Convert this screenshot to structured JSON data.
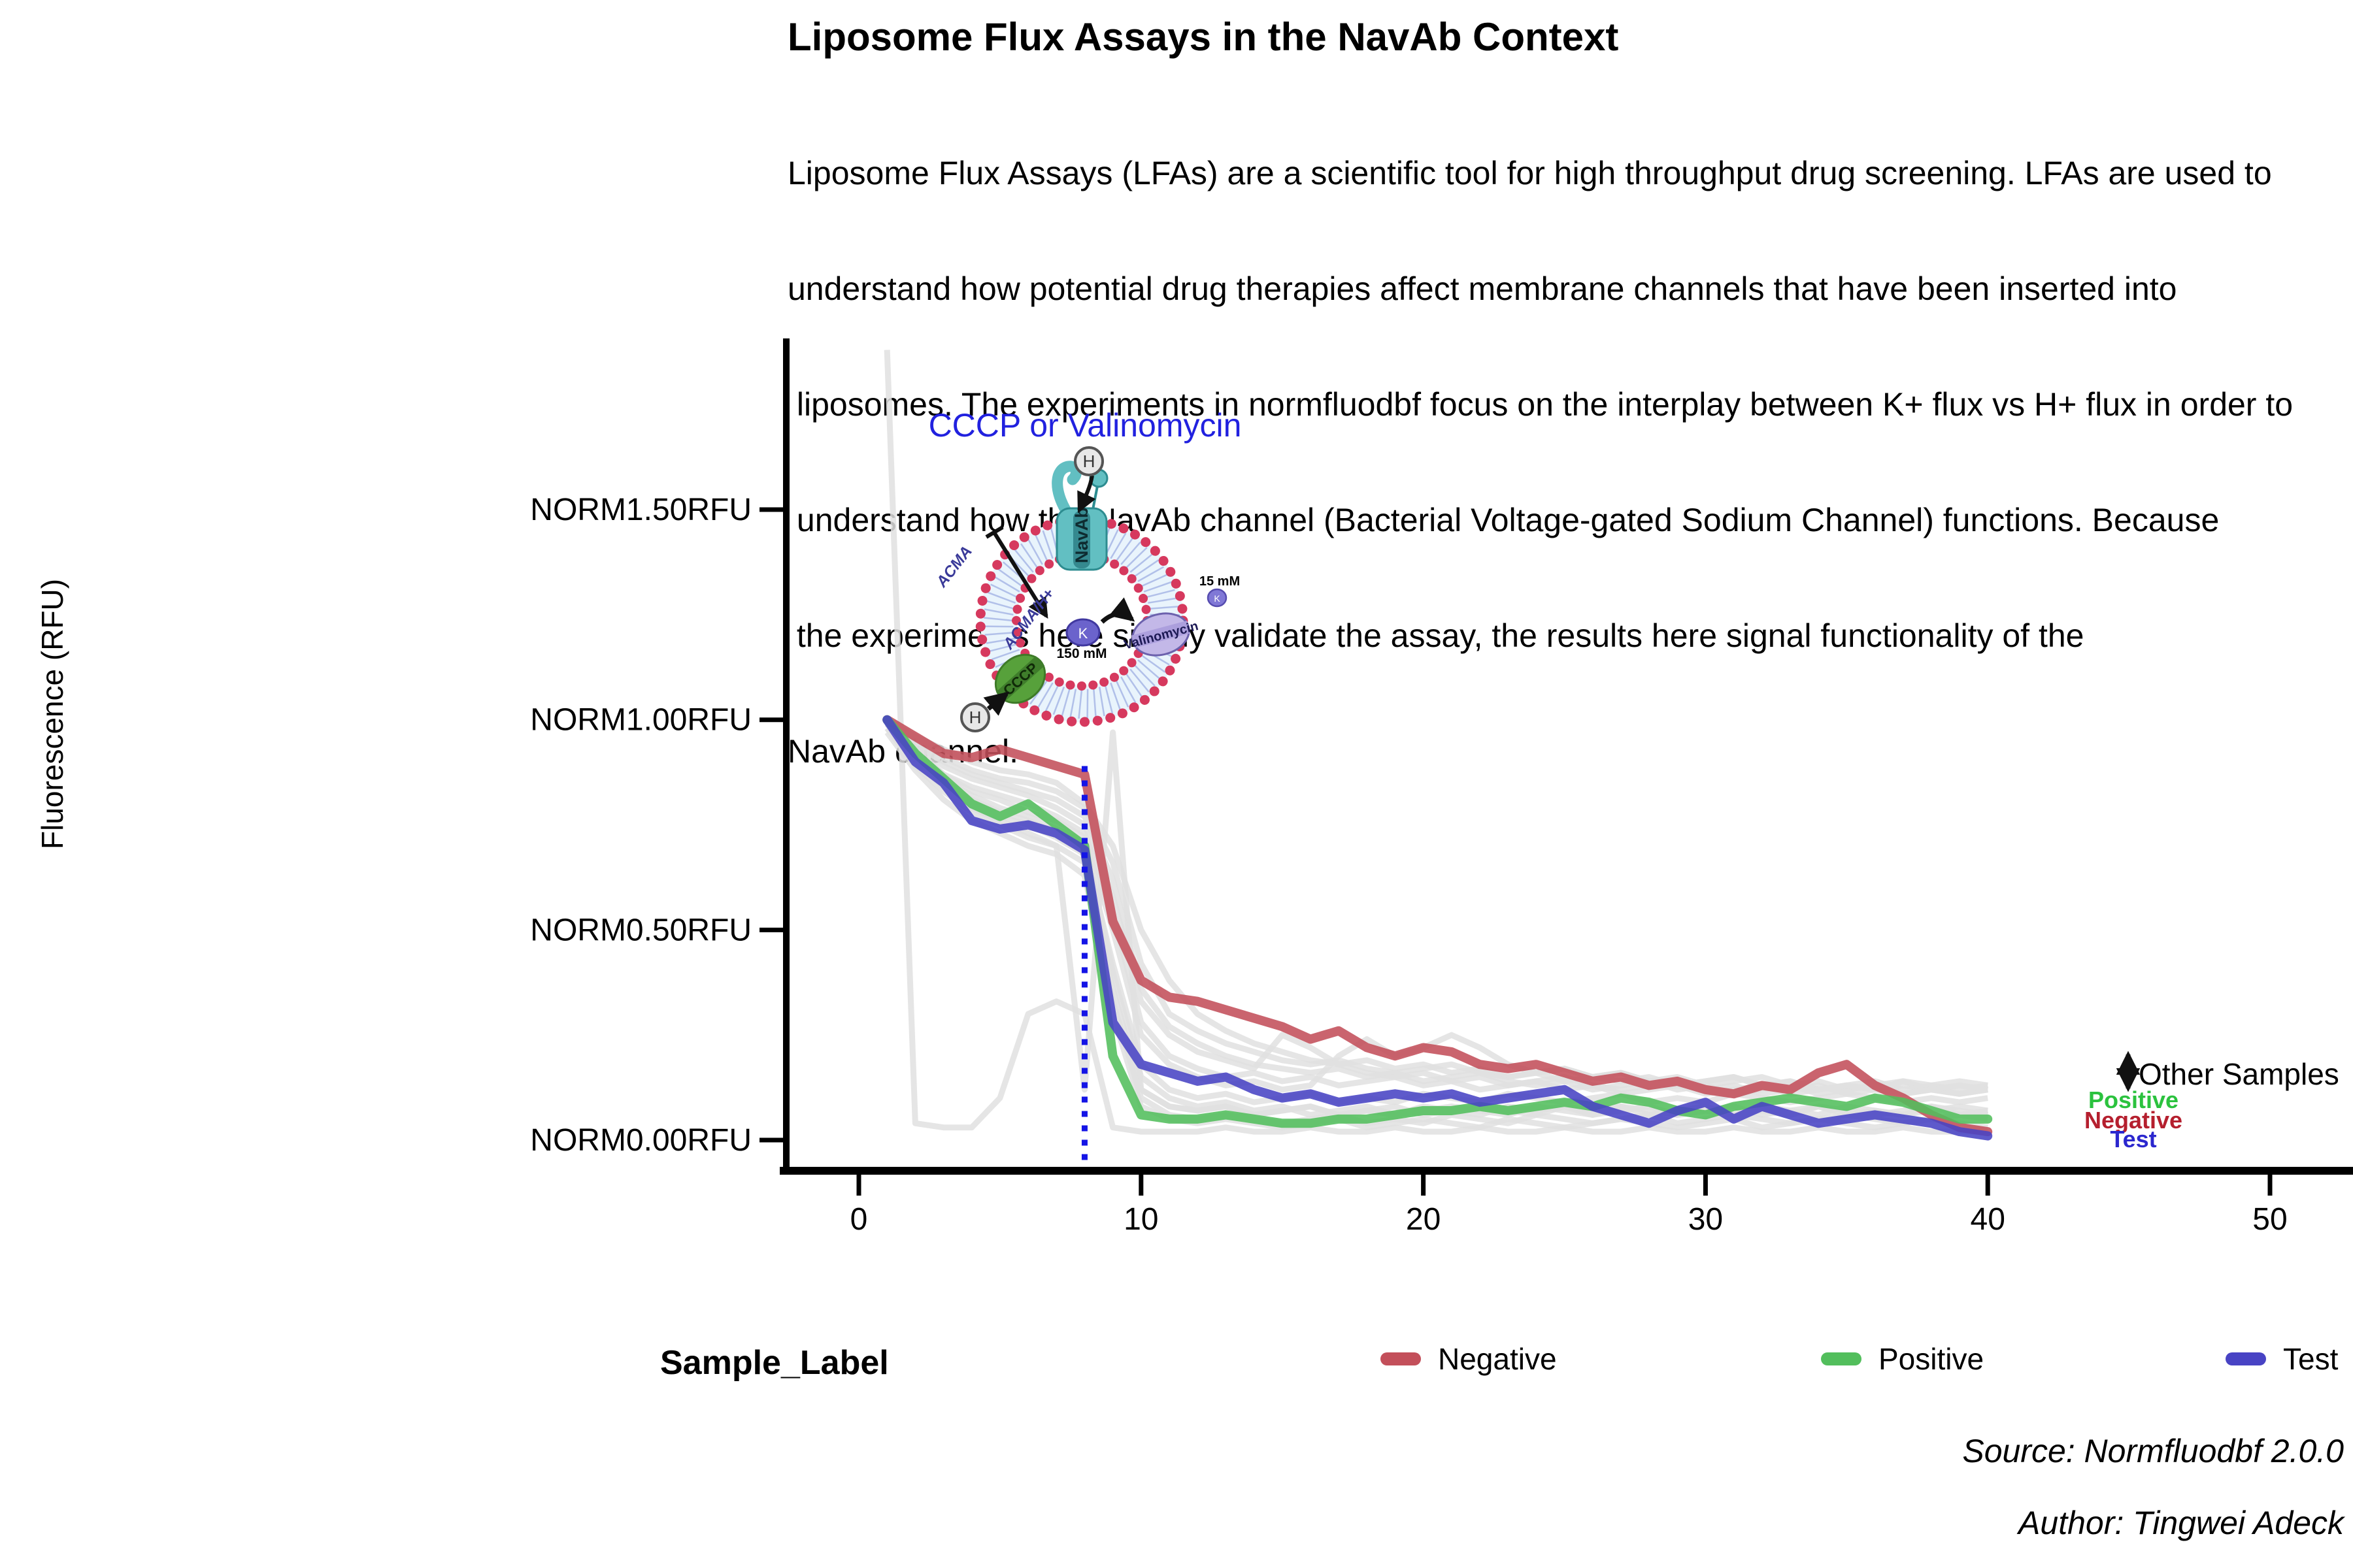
{
  "title": "Liposome Flux Assays in the NavAb Context",
  "intro": {
    "lines": [
      "Liposome Flux Assays (LFAs) are a scientific tool for high throughput drug screening. LFAs are used to",
      "understand how potential drug therapies affect membrane channels that have been inserted into",
      " liposomes. The experiments in normfluodbf focus on the interplay between K+ flux vs H+ flux in order to",
      " understand how the NavAb channel (Bacterial Voltage-gated Sodium Channel) functions. Because",
      " the experiments here simply validate the assay, the results here signal functionality of the",
      "NavAb channel."
    ]
  },
  "colors": {
    "title_gold": "#F2BE15",
    "negative": "#C34F5A",
    "positive": "#52BE5C",
    "test": "#4843C4",
    "other_samples": "#E0E0E0",
    "event_line_blue": "#1414E6",
    "annotation_blue": "#2121DF",
    "anno_positive_green": "#2BC23E",
    "anno_negative_red": "#B51F2E",
    "anno_test_blue": "#2B27CE",
    "membrane_dot_red": "#D6395E",
    "membrane_fill": "#E9F4FC",
    "lipid_tail": "#AEBDE8",
    "navab_teal": "#62BFC2",
    "navab_dark": "#2D8C90",
    "cccp_green": "#57A13B",
    "valinomycin_purple": "#C3B8E8",
    "k_ion_purple": "#6B63CC"
  },
  "chart_data": {
    "type": "line",
    "title": "",
    "xlabel": "",
    "ylabel": "Fluorescence (RFU)",
    "x_start": 1,
    "x_step": 1,
    "xlim": [
      -2.5,
      53
    ],
    "ylim": [
      0,
      1.9
    ],
    "grid": false,
    "x_ticks": [
      0,
      10,
      20,
      30,
      40,
      50
    ],
    "y_ticks": [
      {
        "v": 0.0,
        "label": "NORM0.00RFU"
      },
      {
        "v": 0.5,
        "label": "NORM0.50RFU"
      },
      {
        "v": 1.0,
        "label": "NORM1.00RFU"
      },
      {
        "v": 1.5,
        "label": "NORM1.50RFU"
      }
    ],
    "event_line": {
      "x": 8,
      "y0": -0.065,
      "y1": 0.89,
      "label": "CCCP or Valinomycin"
    },
    "series": [
      {
        "name": "Negative",
        "color": "#C34F5A",
        "values": [
          1.0,
          0.96,
          0.92,
          0.91,
          0.93,
          0.91,
          0.89,
          0.87,
          0.52,
          0.38,
          0.34,
          0.33,
          0.31,
          0.29,
          0.27,
          0.24,
          0.26,
          0.22,
          0.2,
          0.22,
          0.21,
          0.18,
          0.17,
          0.18,
          0.16,
          0.14,
          0.15,
          0.13,
          0.14,
          0.12,
          0.11,
          0.13,
          0.12,
          0.16,
          0.18,
          0.13,
          0.1,
          0.06,
          0.03,
          0.02
        ]
      },
      {
        "name": "Positive",
        "color": "#52BE5C",
        "values": [
          1.0,
          0.92,
          0.86,
          0.8,
          0.77,
          0.8,
          0.75,
          0.7,
          0.2,
          0.06,
          0.05,
          0.05,
          0.06,
          0.05,
          0.04,
          0.04,
          0.05,
          0.05,
          0.06,
          0.07,
          0.07,
          0.08,
          0.07,
          0.08,
          0.09,
          0.08,
          0.1,
          0.09,
          0.07,
          0.06,
          0.08,
          0.09,
          0.1,
          0.09,
          0.08,
          0.1,
          0.09,
          0.07,
          0.05,
          0.05
        ]
      },
      {
        "name": "Test",
        "color": "#4843C4",
        "values": [
          1.0,
          0.9,
          0.85,
          0.76,
          0.74,
          0.75,
          0.73,
          0.69,
          0.28,
          0.18,
          0.16,
          0.14,
          0.15,
          0.12,
          0.1,
          0.11,
          0.09,
          0.1,
          0.11,
          0.1,
          0.11,
          0.09,
          0.1,
          0.11,
          0.12,
          0.08,
          0.06,
          0.04,
          0.07,
          0.09,
          0.05,
          0.08,
          0.06,
          0.04,
          0.05,
          0.06,
          0.05,
          0.04,
          0.02,
          0.01
        ]
      }
    ],
    "other_samples": [
      [
        1.88,
        0.04,
        0.03,
        0.03,
        0.1,
        0.3,
        0.33,
        0.3,
        0.03,
        0.02,
        0.02,
        0.02,
        0.03,
        0.02,
        0.02,
        0.03,
        0.02,
        0.02,
        0.03,
        0.02,
        0.02,
        0.03,
        0.02,
        0.02,
        0.03,
        0.02,
        0.02,
        0.03,
        0.02,
        0.02,
        0.03,
        0.02,
        0.02,
        0.03,
        0.02,
        0.02,
        0.03,
        0.02,
        0.02,
        0.02
      ],
      [
        0.98,
        0.91,
        0.84,
        0.79,
        0.76,
        0.73,
        0.7,
        0.12,
        0.97,
        0.12,
        0.08,
        0.07,
        0.08,
        0.06,
        0.07,
        0.08,
        0.06,
        0.07,
        0.08,
        0.06,
        0.07,
        0.08,
        0.07,
        0.06,
        0.08,
        0.07,
        0.08,
        0.06,
        0.07,
        0.08,
        0.06,
        0.07,
        0.06,
        0.08,
        0.07,
        0.06,
        0.07,
        0.08,
        0.06,
        0.07
      ],
      [
        1.0,
        0.94,
        0.89,
        0.86,
        0.84,
        0.82,
        0.79,
        0.75,
        0.58,
        0.33,
        0.25,
        0.21,
        0.19,
        0.17,
        0.25,
        0.22,
        0.18,
        0.16,
        0.15,
        0.16,
        0.14,
        0.15,
        0.13,
        0.14,
        0.15,
        0.13,
        0.12,
        0.13,
        0.14,
        0.12,
        0.13,
        0.11,
        0.12,
        0.13,
        0.11,
        0.12,
        0.13,
        0.12,
        0.11,
        0.12
      ],
      [
        0.99,
        0.92,
        0.86,
        0.82,
        0.79,
        0.77,
        0.74,
        0.71,
        0.4,
        0.15,
        0.1,
        0.08,
        0.09,
        0.07,
        0.08,
        0.06,
        0.07,
        0.08,
        0.06,
        0.07,
        0.08,
        0.07,
        0.06,
        0.08,
        0.07,
        0.06,
        0.08,
        0.07,
        0.06,
        0.07,
        0.08,
        0.06,
        0.07,
        0.08,
        0.06,
        0.07,
        0.06,
        0.08,
        0.07,
        0.06
      ],
      [
        1.0,
        0.95,
        0.91,
        0.88,
        0.86,
        0.85,
        0.83,
        0.79,
        0.66,
        0.42,
        0.3,
        0.26,
        0.23,
        0.21,
        0.19,
        0.18,
        0.19,
        0.17,
        0.16,
        0.17,
        0.18,
        0.16,
        0.15,
        0.16,
        0.14,
        0.15,
        0.16,
        0.14,
        0.13,
        0.14,
        0.15,
        0.13,
        0.14,
        0.12,
        0.13,
        0.14,
        0.12,
        0.13,
        0.14,
        0.13
      ],
      [
        0.97,
        0.88,
        0.81,
        0.76,
        0.73,
        0.7,
        0.68,
        0.63,
        0.3,
        0.08,
        0.05,
        0.04,
        0.05,
        0.04,
        0.03,
        0.04,
        0.05,
        0.03,
        0.04,
        0.05,
        0.04,
        0.03,
        0.05,
        0.04,
        0.03,
        0.04,
        0.05,
        0.04,
        0.03,
        0.04,
        0.05,
        0.03,
        0.04,
        0.05,
        0.04,
        0.03,
        0.04,
        0.05,
        0.04,
        0.03
      ],
      [
        1.0,
        0.93,
        0.87,
        0.83,
        0.81,
        0.78,
        0.76,
        0.72,
        0.5,
        0.25,
        0.18,
        0.15,
        0.13,
        0.14,
        0.12,
        0.13,
        0.2,
        0.24,
        0.2,
        0.22,
        0.25,
        0.22,
        0.18,
        0.16,
        0.17,
        0.15,
        0.16,
        0.14,
        0.15,
        0.13,
        0.14,
        0.15,
        0.13,
        0.14,
        0.12,
        0.13,
        0.14,
        0.12,
        0.13,
        0.12
      ],
      [
        0.98,
        0.9,
        0.84,
        0.8,
        0.77,
        0.75,
        0.72,
        0.68,
        0.36,
        0.12,
        0.08,
        0.07,
        0.08,
        0.06,
        0.07,
        0.08,
        0.06,
        0.07,
        0.06,
        0.08,
        0.07,
        0.06,
        0.08,
        0.07,
        0.08,
        0.06,
        0.07,
        0.08,
        0.06,
        0.07,
        0.06,
        0.08,
        0.07,
        0.06,
        0.08,
        0.07,
        0.06,
        0.07,
        0.08,
        0.07
      ],
      [
        1.0,
        0.96,
        0.93,
        0.9,
        0.88,
        0.87,
        0.85,
        0.8,
        0.7,
        0.5,
        0.38,
        0.3,
        0.26,
        0.23,
        0.21,
        0.19,
        0.18,
        0.19,
        0.17,
        0.18,
        0.16,
        0.17,
        0.15,
        0.16,
        0.17,
        0.15,
        0.14,
        0.15,
        0.13,
        0.14,
        0.15,
        0.13,
        0.14,
        0.12,
        0.13,
        0.12,
        0.14,
        0.13,
        0.12,
        0.13
      ],
      [
        0.99,
        0.91,
        0.85,
        0.81,
        0.78,
        0.76,
        0.73,
        0.69,
        0.42,
        0.18,
        0.12,
        0.1,
        0.11,
        0.09,
        0.1,
        0.11,
        0.09,
        0.1,
        0.09,
        0.11,
        0.1,
        0.09,
        0.11,
        0.1,
        0.09,
        0.1,
        0.11,
        0.09,
        0.1,
        0.09,
        0.11,
        0.1,
        0.09,
        0.1,
        0.11,
        0.1,
        0.09,
        0.1,
        0.09,
        0.1
      ],
      [
        1.0,
        0.94,
        0.9,
        0.87,
        0.85,
        0.83,
        0.81,
        0.77,
        0.62,
        0.36,
        0.27,
        0.23,
        0.2,
        0.18,
        0.17,
        0.16,
        0.17,
        0.15,
        0.16,
        0.14,
        0.15,
        0.16,
        0.14,
        0.13,
        0.14,
        0.12,
        0.13,
        0.14,
        0.12,
        0.13,
        0.11,
        0.12,
        0.13,
        0.11,
        0.12,
        0.13,
        0.11,
        0.12,
        0.11,
        0.12
      ],
      [
        0.98,
        0.89,
        0.83,
        0.78,
        0.75,
        0.72,
        0.7,
        0.66,
        0.33,
        0.1,
        0.06,
        0.05,
        0.06,
        0.05,
        0.04,
        0.05,
        0.06,
        0.04,
        0.05,
        0.04,
        0.06,
        0.05,
        0.04,
        0.06,
        0.05,
        0.04,
        0.05,
        0.06,
        0.04,
        0.05,
        0.06,
        0.05,
        0.04,
        0.05,
        0.06,
        0.05,
        0.04,
        0.05,
        0.06,
        0.05
      ],
      [
        1.0,
        0.92,
        0.87,
        0.84,
        0.82,
        0.8,
        0.77,
        0.73,
        0.54,
        0.28,
        0.2,
        0.17,
        0.15,
        0.16,
        0.14,
        0.15,
        0.13,
        0.14,
        0.15,
        0.13,
        0.14,
        0.12,
        0.13,
        0.14,
        0.12,
        0.13,
        0.11,
        0.12,
        0.13,
        0.11,
        0.12,
        0.13,
        0.11,
        0.12,
        0.13,
        0.12,
        0.11,
        0.12,
        0.13,
        0.12
      ]
    ],
    "legend_position": "bottom",
    "right_annotations": {
      "other_samples": "Other Samples",
      "positive": "Positive",
      "negative": "Negative",
      "test": "Test"
    }
  },
  "diagram": {
    "heading": "CCCP or Valinomycin",
    "navab_label": "NavAb",
    "cccp_label": "CCCP",
    "valinomycin_label": "Valinomycin",
    "acma_label": "ACMA",
    "acma_h_label": "ACMA/H+",
    "h_label": "H",
    "k_label": "K",
    "conc_inside": "150 mM",
    "conc_outside": "15 mM"
  },
  "legend": {
    "title": "Sample_Label",
    "items": [
      {
        "label": "Negative",
        "color": "#C34F5A"
      },
      {
        "label": "Positive",
        "color": "#52BE5C"
      },
      {
        "label": "Test",
        "color": "#4843C4"
      }
    ]
  },
  "footer": {
    "source": "Source: Normfluodbf 2.0.0",
    "author": "Author: Tingwei Adeck"
  }
}
